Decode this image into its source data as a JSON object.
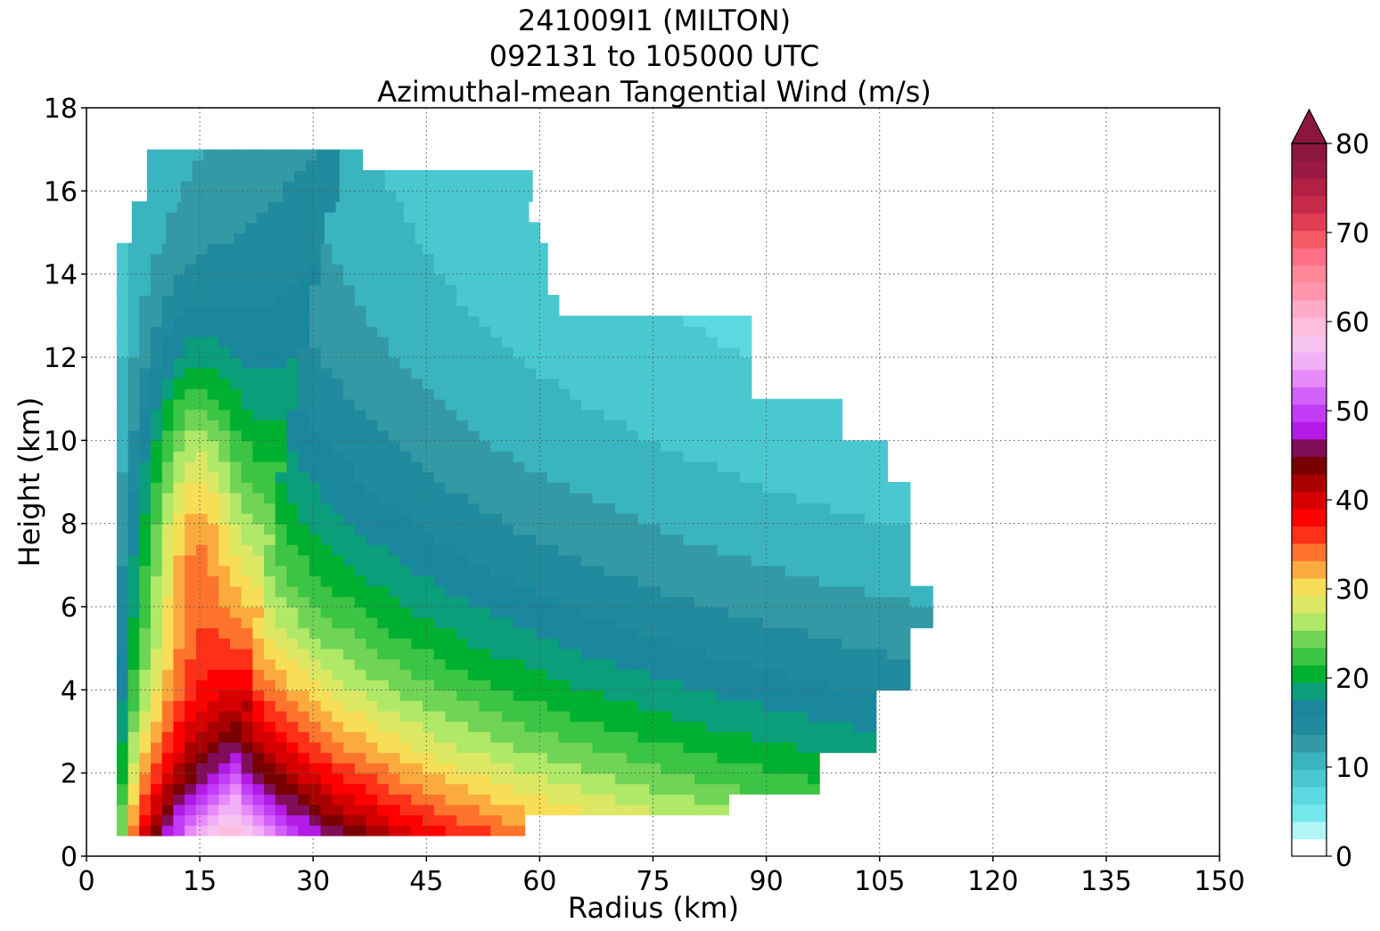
{
  "title_lines": [
    "241009I1 (MILTON)",
    "092131 to 105000 UTC",
    "Azimuthal-mean Tangential Wind (m/s)"
  ],
  "chart_data": {
    "type": "heatmap",
    "title": "241009I1 (MILTON)\n092131 to 105000 UTC\nAzimuthal-mean Tangential Wind (m/s)",
    "xlabel": "Radius (km)",
    "ylabel": "Height (km)",
    "xlim": [
      0,
      150
    ],
    "ylim": [
      0,
      18
    ],
    "xticks": [
      0,
      15,
      30,
      45,
      60,
      75,
      90,
      105,
      120,
      135,
      150
    ],
    "yticks": [
      0,
      2,
      4,
      6,
      8,
      10,
      12,
      14,
      16,
      18
    ],
    "grid": true,
    "colorbar": {
      "ticks": [
        0,
        10,
        20,
        30,
        40,
        50,
        60,
        70,
        80
      ],
      "range": [
        0,
        80
      ],
      "step": 2,
      "extend": "max",
      "colors": [
        "#ffffff",
        "#b2f5f5",
        "#72e8ec",
        "#5cd9e0",
        "#4ac8d0",
        "#3ab5bf",
        "#339aa5",
        "#208b9e",
        "#1a879e",
        "#0a9e7a",
        "#00b030",
        "#3cc444",
        "#70d456",
        "#b0e868",
        "#dce864",
        "#f7de56",
        "#fbab3e",
        "#ff742c",
        "#ff3018",
        "#ff0000",
        "#d60000",
        "#a80000",
        "#780000",
        "#800d58",
        "#b31ae6",
        "#c23bf7",
        "#d161fa",
        "#e88af9",
        "#f2b0f7",
        "#f7c4ef",
        "#fdbede",
        "#ffaac8",
        "#ff96ac",
        "#ff8898",
        "#ff7088",
        "#f25a66",
        "#e03c52",
        "#c72b4a",
        "#b32044",
        "#9a1a44",
        "#8c1640"
      ]
    },
    "note_levels": "contour levels every 2 m/s from 0 to 80",
    "field": {
      "radius_km": [
        4,
        8,
        12,
        16,
        20,
        24,
        28,
        32,
        36,
        40,
        44,
        48,
        52,
        56,
        60,
        64,
        68,
        72,
        76,
        80,
        84,
        88,
        92,
        96,
        100,
        104,
        108,
        112
      ],
      "height_km": [
        0.5,
        1,
        2,
        3,
        4,
        5,
        6,
        7,
        8,
        9,
        10,
        11,
        12,
        13,
        14,
        15,
        16,
        16.5
      ],
      "max_wind_ms": 60,
      "rmw_km": 20,
      "peak_height_km": 0.5
    }
  }
}
